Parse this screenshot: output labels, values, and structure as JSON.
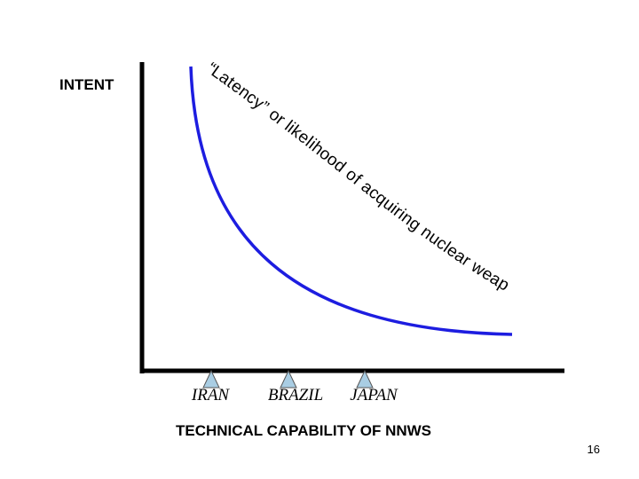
{
  "axes": {
    "y_label": "INTENT",
    "x_label": "TECHNICAL CAPABILITY OF NNWS"
  },
  "curve": {
    "label": "“Latency” or likelihood of acquiring nuclear weapons"
  },
  "markers": [
    {
      "label": "IRAN"
    },
    {
      "label": "BRAZIL"
    },
    {
      "label": "JAPAN"
    }
  ],
  "page_number": "16"
}
